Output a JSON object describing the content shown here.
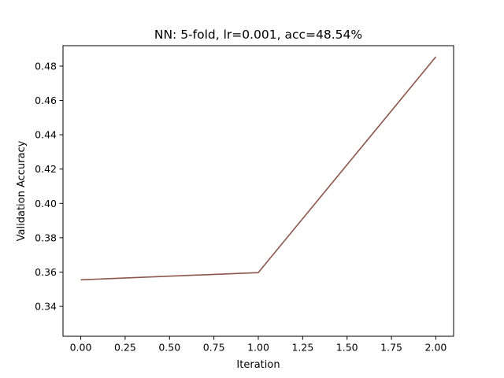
{
  "chart_data": {
    "type": "line",
    "title": "NN: 5-fold, lr=0.001, acc=48.54%",
    "xlabel": "Iteration",
    "ylabel": "Validation Accuracy",
    "xlim": [
      -0.1,
      2.1
    ],
    "ylim": [
      0.3226,
      0.4919
    ],
    "x_ticks": [
      0.0,
      0.25,
      0.5,
      0.75,
      1.0,
      1.25,
      1.5,
      1.75,
      2.0
    ],
    "x_tick_labels": [
      "0.00",
      "0.25",
      "0.50",
      "0.75",
      "1.00",
      "1.25",
      "1.50",
      "1.75",
      "2.00"
    ],
    "y_ticks": [
      0.34,
      0.36,
      0.38,
      0.4,
      0.42,
      0.44,
      0.46,
      0.48
    ],
    "y_tick_labels": [
      "0.34",
      "0.36",
      "0.38",
      "0.40",
      "0.42",
      "0.44",
      "0.46",
      "0.48"
    ],
    "grid": false,
    "series": [
      {
        "color": "#8c564b",
        "x": [
          0,
          1,
          2
        ],
        "y": [
          0.3555,
          0.3597,
          0.4854
        ]
      }
    ]
  }
}
